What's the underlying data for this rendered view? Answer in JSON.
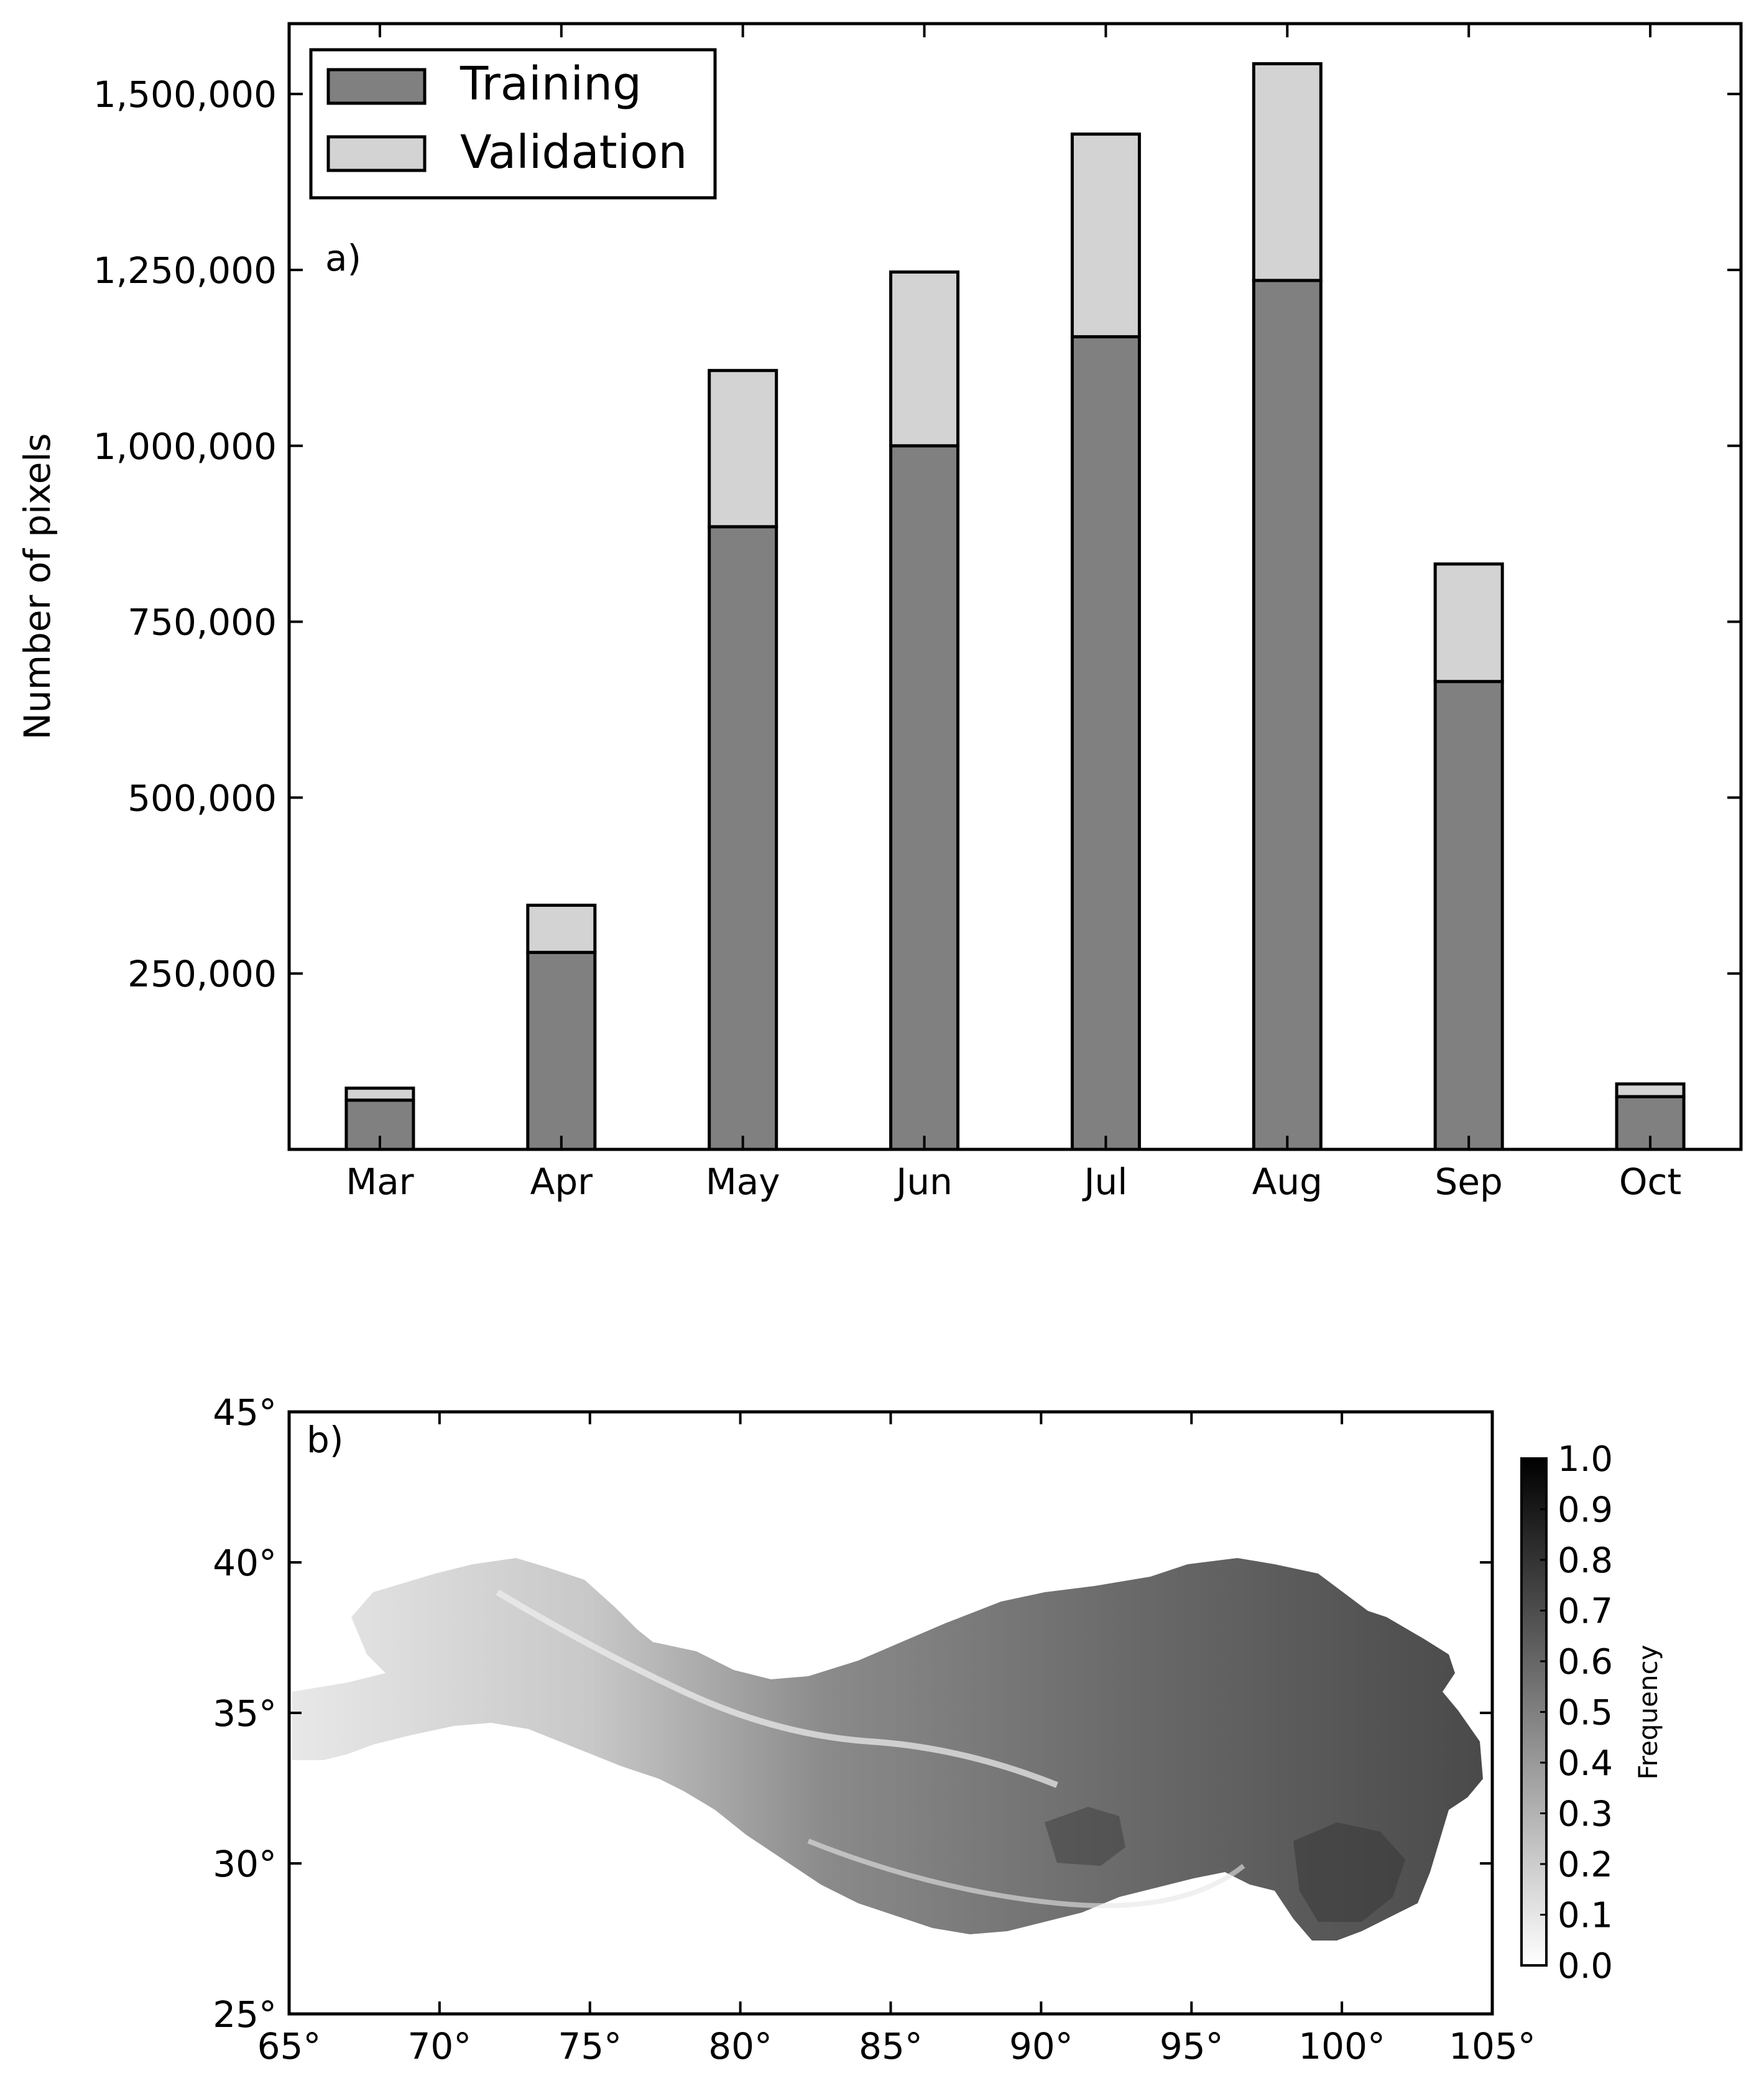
{
  "chart_data": [
    {
      "type": "bar",
      "stacked": true,
      "panel_label": "a)",
      "ylabel": "Number of pixels",
      "xlabel": "",
      "categories": [
        "Mar",
        "Apr",
        "May",
        "Jun",
        "Jul",
        "Aug",
        "Sep",
        "Oct"
      ],
      "series": [
        {
          "name": "Training",
          "color": "#808080",
          "values": [
            70000,
            280000,
            885000,
            1000000,
            1155000,
            1235000,
            665000,
            75000
          ]
        },
        {
          "name": "Validation",
          "color": "#d3d3d3",
          "values": [
            17000,
            67000,
            222000,
            247000,
            288000,
            308000,
            167000,
            18000
          ]
        }
      ],
      "ylim": [
        0,
        1600000
      ],
      "yticks": [
        250000,
        500000,
        750000,
        1000000,
        1250000,
        1500000
      ],
      "ytick_labels": [
        "250,000",
        "500,000",
        "750,000",
        "1,000,000",
        "1,250,000",
        "1,500,000"
      ],
      "legend_position": "top-left",
      "grid": false
    },
    {
      "type": "heatmap",
      "panel_label": "b)",
      "description_of_content": "map",
      "xlim": [
        65,
        105
      ],
      "ylim": [
        25,
        45
      ],
      "xticks": [
        65,
        70,
        75,
        80,
        85,
        90,
        95,
        100,
        105
      ],
      "xtick_labels": [
        "65°",
        "70°",
        "75°",
        "80°",
        "85°",
        "90°",
        "95°",
        "100°",
        "105°"
      ],
      "yticks": [
        25,
        30,
        35,
        40,
        45
      ],
      "ytick_labels": [
        "25°",
        "30°",
        "35°",
        "40°",
        "45°"
      ],
      "colorbar": {
        "label": "Frequency",
        "range": [
          0,
          1
        ],
        "ticks": [
          0.0,
          0.1,
          0.2,
          0.3,
          0.4,
          0.5,
          0.6,
          0.7,
          0.8,
          0.9,
          1.0
        ],
        "tick_labels": [
          "0.0",
          "0.1",
          "0.2",
          "0.3",
          "0.4",
          "0.5",
          "0.6",
          "0.7",
          "0.8",
          "0.9",
          "1.0"
        ],
        "colormap": "white-to-black"
      }
    }
  ]
}
